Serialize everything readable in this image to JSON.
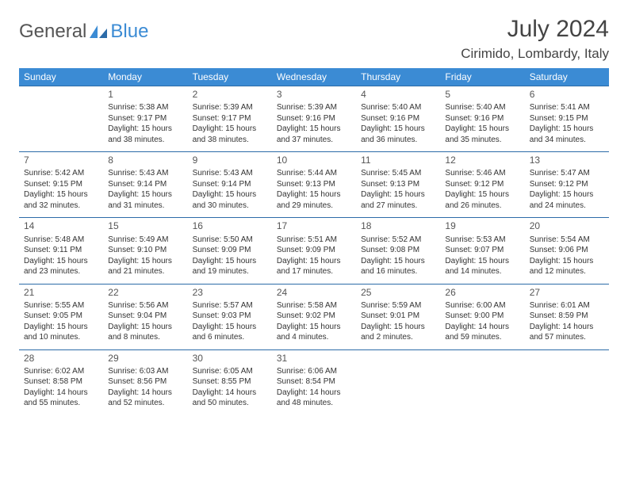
{
  "brand": {
    "text1": "General",
    "text2": "Blue"
  },
  "header": {
    "month": "July 2024",
    "location": "Cirimido, Lombardy, Italy"
  },
  "weekdays": [
    "Sunday",
    "Monday",
    "Tuesday",
    "Wednesday",
    "Thursday",
    "Friday",
    "Saturday"
  ],
  "colors": {
    "blue": "#3b8bd4",
    "sep": "#2c6ba8",
    "text": "#333333",
    "bg": "#ffffff"
  },
  "typography": {
    "title_size": 30,
    "location_size": 17,
    "cell_size": 10,
    "header_size": 12
  },
  "calendar": {
    "type": "table",
    "first_weekday_index": 1,
    "days": [
      {
        "n": 1,
        "sr": "5:38 AM",
        "ss": "9:17 PM",
        "dl": "15 hours and 38 minutes."
      },
      {
        "n": 2,
        "sr": "5:39 AM",
        "ss": "9:17 PM",
        "dl": "15 hours and 38 minutes."
      },
      {
        "n": 3,
        "sr": "5:39 AM",
        "ss": "9:16 PM",
        "dl": "15 hours and 37 minutes."
      },
      {
        "n": 4,
        "sr": "5:40 AM",
        "ss": "9:16 PM",
        "dl": "15 hours and 36 minutes."
      },
      {
        "n": 5,
        "sr": "5:40 AM",
        "ss": "9:16 PM",
        "dl": "15 hours and 35 minutes."
      },
      {
        "n": 6,
        "sr": "5:41 AM",
        "ss": "9:15 PM",
        "dl": "15 hours and 34 minutes."
      },
      {
        "n": 7,
        "sr": "5:42 AM",
        "ss": "9:15 PM",
        "dl": "15 hours and 32 minutes."
      },
      {
        "n": 8,
        "sr": "5:43 AM",
        "ss": "9:14 PM",
        "dl": "15 hours and 31 minutes."
      },
      {
        "n": 9,
        "sr": "5:43 AM",
        "ss": "9:14 PM",
        "dl": "15 hours and 30 minutes."
      },
      {
        "n": 10,
        "sr": "5:44 AM",
        "ss": "9:13 PM",
        "dl": "15 hours and 29 minutes."
      },
      {
        "n": 11,
        "sr": "5:45 AM",
        "ss": "9:13 PM",
        "dl": "15 hours and 27 minutes."
      },
      {
        "n": 12,
        "sr": "5:46 AM",
        "ss": "9:12 PM",
        "dl": "15 hours and 26 minutes."
      },
      {
        "n": 13,
        "sr": "5:47 AM",
        "ss": "9:12 PM",
        "dl": "15 hours and 24 minutes."
      },
      {
        "n": 14,
        "sr": "5:48 AM",
        "ss": "9:11 PM",
        "dl": "15 hours and 23 minutes."
      },
      {
        "n": 15,
        "sr": "5:49 AM",
        "ss": "9:10 PM",
        "dl": "15 hours and 21 minutes."
      },
      {
        "n": 16,
        "sr": "5:50 AM",
        "ss": "9:09 PM",
        "dl": "15 hours and 19 minutes."
      },
      {
        "n": 17,
        "sr": "5:51 AM",
        "ss": "9:09 PM",
        "dl": "15 hours and 17 minutes."
      },
      {
        "n": 18,
        "sr": "5:52 AM",
        "ss": "9:08 PM",
        "dl": "15 hours and 16 minutes."
      },
      {
        "n": 19,
        "sr": "5:53 AM",
        "ss": "9:07 PM",
        "dl": "15 hours and 14 minutes."
      },
      {
        "n": 20,
        "sr": "5:54 AM",
        "ss": "9:06 PM",
        "dl": "15 hours and 12 minutes."
      },
      {
        "n": 21,
        "sr": "5:55 AM",
        "ss": "9:05 PM",
        "dl": "15 hours and 10 minutes."
      },
      {
        "n": 22,
        "sr": "5:56 AM",
        "ss": "9:04 PM",
        "dl": "15 hours and 8 minutes."
      },
      {
        "n": 23,
        "sr": "5:57 AM",
        "ss": "9:03 PM",
        "dl": "15 hours and 6 minutes."
      },
      {
        "n": 24,
        "sr": "5:58 AM",
        "ss": "9:02 PM",
        "dl": "15 hours and 4 minutes."
      },
      {
        "n": 25,
        "sr": "5:59 AM",
        "ss": "9:01 PM",
        "dl": "15 hours and 2 minutes."
      },
      {
        "n": 26,
        "sr": "6:00 AM",
        "ss": "9:00 PM",
        "dl": "14 hours and 59 minutes."
      },
      {
        "n": 27,
        "sr": "6:01 AM",
        "ss": "8:59 PM",
        "dl": "14 hours and 57 minutes."
      },
      {
        "n": 28,
        "sr": "6:02 AM",
        "ss": "8:58 PM",
        "dl": "14 hours and 55 minutes."
      },
      {
        "n": 29,
        "sr": "6:03 AM",
        "ss": "8:56 PM",
        "dl": "14 hours and 52 minutes."
      },
      {
        "n": 30,
        "sr": "6:05 AM",
        "ss": "8:55 PM",
        "dl": "14 hours and 50 minutes."
      },
      {
        "n": 31,
        "sr": "6:06 AM",
        "ss": "8:54 PM",
        "dl": "14 hours and 48 minutes."
      }
    ]
  },
  "labels": {
    "sunrise": "Sunrise:",
    "sunset": "Sunset:",
    "daylight": "Daylight:"
  }
}
